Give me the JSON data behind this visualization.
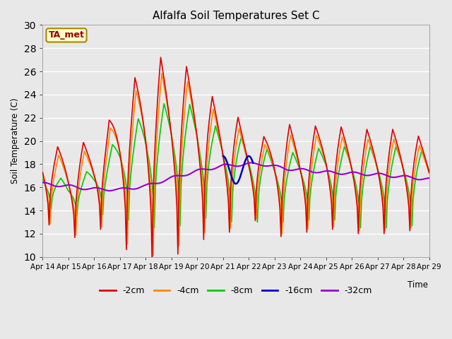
{
  "title": "Alfalfa Soil Temperatures Set C",
  "ylabel": "Soil Temperature (C)",
  "xlabel": "Time",
  "annotation": "TA_met",
  "ylim": [
    10,
    30
  ],
  "xlim": [
    0,
    360
  ],
  "background_color": "#e0e0e0",
  "plot_bg_color": "#e8e8e8",
  "grid_color": "#ffffff",
  "series_colors": {
    "-2cm": "#dd0000",
    "-4cm": "#ff8800",
    "-8cm": "#00cc00",
    "-16cm": "#0000bb",
    "-32cm": "#9900cc"
  },
  "x_tick_labels": [
    "Apr 14",
    "Apr 15",
    "Apr 16",
    "Apr 17",
    "Apr 18",
    "Apr 19",
    "Apr 20",
    "Apr 21",
    "Apr 22",
    "Apr 23",
    "Apr 24",
    "Apr 25",
    "Apr 26",
    "Apr 27",
    "Apr 28",
    "Apr 29"
  ],
  "x_tick_positions": [
    0,
    24,
    48,
    72,
    96,
    120,
    144,
    168,
    192,
    216,
    240,
    264,
    288,
    312,
    336,
    360
  ]
}
